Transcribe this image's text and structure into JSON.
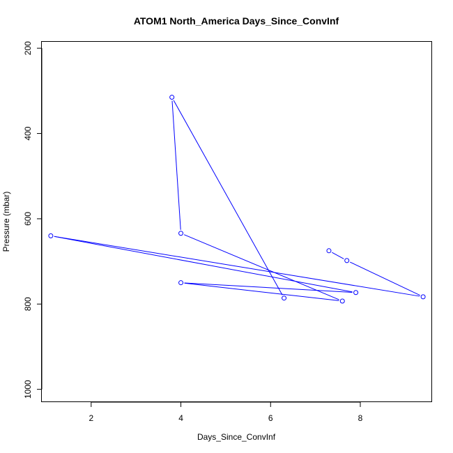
{
  "chart_data": {
    "type": "line",
    "title": "ATOM1 North_America Days_Since_ConvInf",
    "xlabel": "Days_Since_ConvInf",
    "ylabel": "Pressure (mbar)",
    "xlim": [
      0.9,
      9.6
    ],
    "ylim": [
      1030,
      185
    ],
    "y_reversed": true,
    "x_ticks": [
      2,
      4,
      6,
      8
    ],
    "y_ticks": [
      200,
      400,
      600,
      800,
      1000
    ],
    "grid": false,
    "series": [
      {
        "color": "#0000ff",
        "marker": "open-circle",
        "points": [
          {
            "x": 7.3,
            "y": 675
          },
          {
            "x": 7.7,
            "y": 698
          },
          {
            "x": 9.4,
            "y": 783
          },
          {
            "x": 1.1,
            "y": 640
          },
          {
            "x": 7.9,
            "y": 773
          },
          {
            "x": 4.0,
            "y": 750
          },
          {
            "x": 7.6,
            "y": 793
          },
          {
            "x": 4.0,
            "y": 634
          },
          {
            "x": 3.8,
            "y": 315
          },
          {
            "x": 6.3,
            "y": 786
          }
        ]
      }
    ]
  }
}
